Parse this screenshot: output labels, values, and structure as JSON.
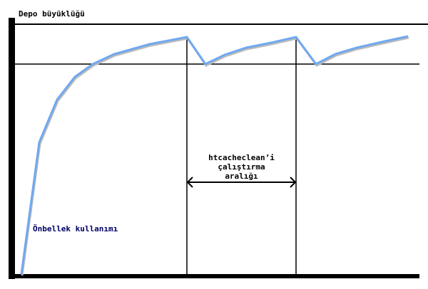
{
  "labels": {
    "y_axis": "Depo büyüklüğü",
    "interval_line1": "htcacheclean’i",
    "interval_line2": "çalıştırma",
    "interval_line3": "aralığı",
    "curve": "Önbellek kullanımı"
  },
  "colors": {
    "curve": "#6fa8f0",
    "axes": "#000000",
    "curve_label": "#000066"
  }
}
